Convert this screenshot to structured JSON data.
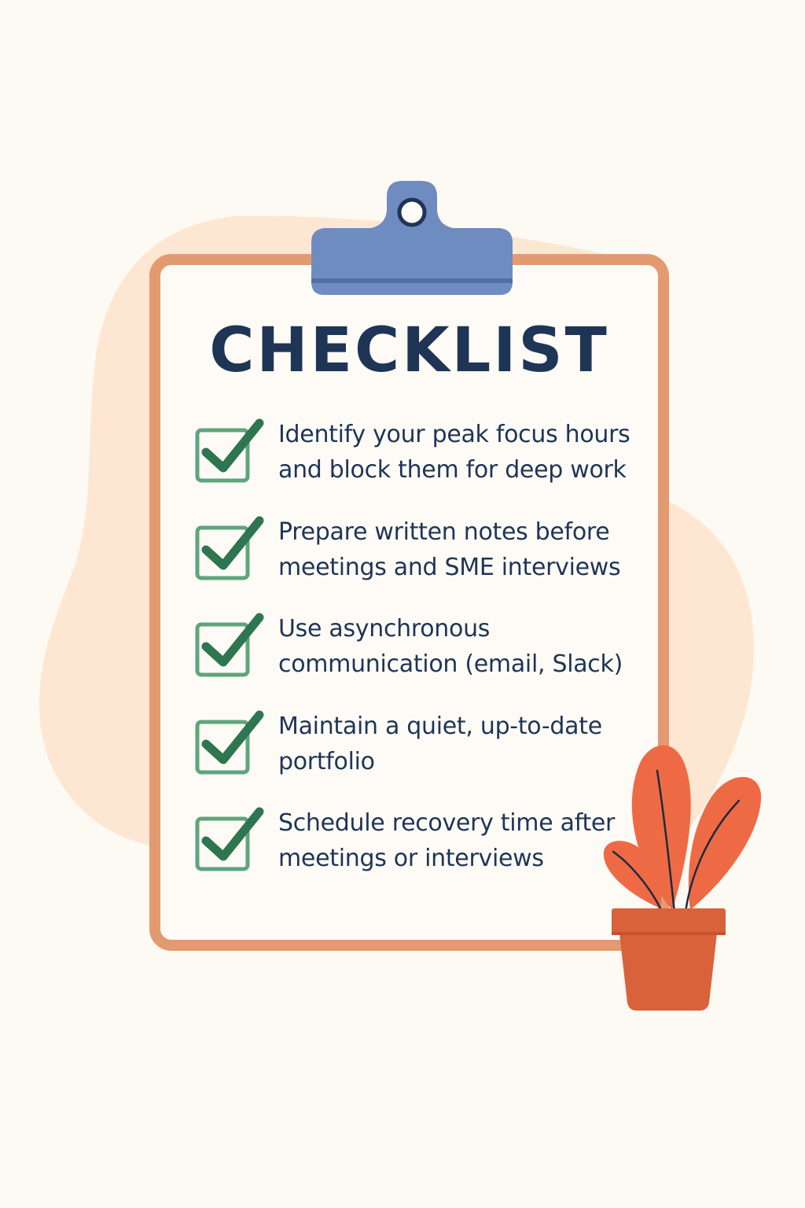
{
  "title": "CHECKLIST",
  "items": [
    {
      "line1": "Identify your peak focus hours",
      "line2": "and block them for deep work",
      "checked": true
    },
    {
      "line1": "Prepare written notes before",
      "line2": "meetings and SME interviews",
      "checked": true
    },
    {
      "line1": "Use asynchronous",
      "line2": "communication (email, Slack)",
      "checked": true
    },
    {
      "line1": "Maintain a quiet, up-to-date",
      "line2": "portfolio",
      "checked": true
    },
    {
      "line1": "Schedule recovery time after",
      "line2": "meetings or interviews",
      "checked": true
    }
  ],
  "colors": {
    "background": "#fdf9f3",
    "blob": "#fde7d2",
    "board_border": "#e39a70",
    "clip": "#6f8cc0",
    "text": "#1e3556",
    "check_box": "#5fa47c",
    "check_mark": "#2e7550",
    "leaf": "#ee6a45",
    "pot": "#d9623b"
  },
  "icons": {
    "clip": "clipboard-clip-icon",
    "check": "checkbox-checked-icon",
    "plant": "potted-plant-icon"
  }
}
